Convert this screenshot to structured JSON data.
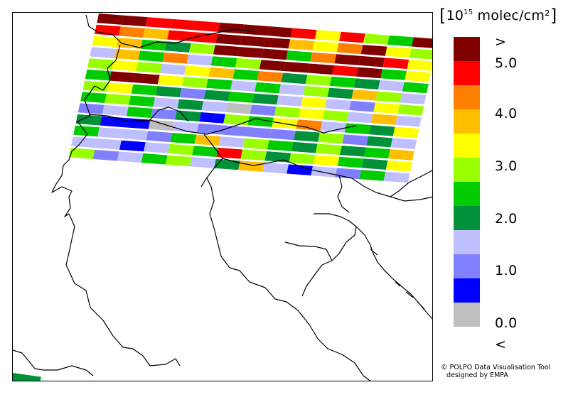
{
  "legend": {
    "unit_base": "10",
    "unit_exponent": "15",
    "unit_rest": " molec/cm²",
    "colors": [
      "#800000",
      "#ff0000",
      "#ff7f00",
      "#ffbf00",
      "#ffff00",
      "#99ff00",
      "#00cc00",
      "#00913a",
      "#bfbfff",
      "#8080ff",
      "#0000ff",
      "#bfbfbf"
    ],
    "ticks": [
      ">",
      "5.0",
      "4.0",
      "3.0",
      "2.0",
      "1.0",
      "0.0",
      "<"
    ]
  },
  "credit": {
    "line1": "© POLPO Data Visualisation Tool",
    "line2": "designed by EMPA"
  },
  "map": {
    "scanlines": [
      [
        0,
        0,
        1,
        1,
        1,
        0,
        0,
        0,
        1,
        4,
        1,
        5,
        6,
        0
      ],
      [
        1,
        2,
        3,
        1,
        1,
        0,
        0,
        0,
        3,
        4,
        2,
        0,
        4,
        5
      ],
      [
        4,
        3,
        6,
        7,
        5,
        0,
        0,
        0,
        6,
        2,
        0,
        0,
        1,
        4
      ],
      [
        8,
        3,
        6,
        2,
        8,
        6,
        5,
        0,
        0,
        0,
        1,
        0,
        6,
        4
      ],
      [
        5,
        4,
        5,
        8,
        4,
        3,
        6,
        2,
        7,
        5,
        6,
        7,
        8,
        6
      ],
      [
        6,
        0,
        0,
        4,
        5,
        6,
        8,
        6,
        8,
        5,
        7,
        3,
        5,
        8
      ],
      [
        5,
        4,
        6,
        7,
        9,
        7,
        6,
        7,
        8,
        4,
        8,
        9,
        4,
        5
      ],
      [
        6,
        5,
        6,
        8,
        7,
        8,
        11,
        9,
        5,
        4,
        5,
        8,
        3,
        8
      ],
      [
        9,
        8,
        6,
        9,
        7,
        10,
        5,
        6,
        4,
        2,
        8,
        6,
        7,
        4
      ],
      [
        7,
        10,
        10,
        11,
        8,
        9,
        9,
        9,
        9,
        7,
        5,
        9,
        7,
        8
      ],
      [
        6,
        8,
        8,
        9,
        6,
        3,
        8,
        5,
        6,
        7,
        5,
        7,
        6,
        3
      ],
      [
        8,
        8,
        10,
        8,
        5,
        6,
        1,
        5,
        7,
        5,
        4,
        6,
        7,
        4
      ],
      [
        5,
        9,
        8,
        6,
        5,
        8,
        7,
        3,
        8,
        10,
        8,
        9,
        6,
        8
      ]
    ]
  }
}
